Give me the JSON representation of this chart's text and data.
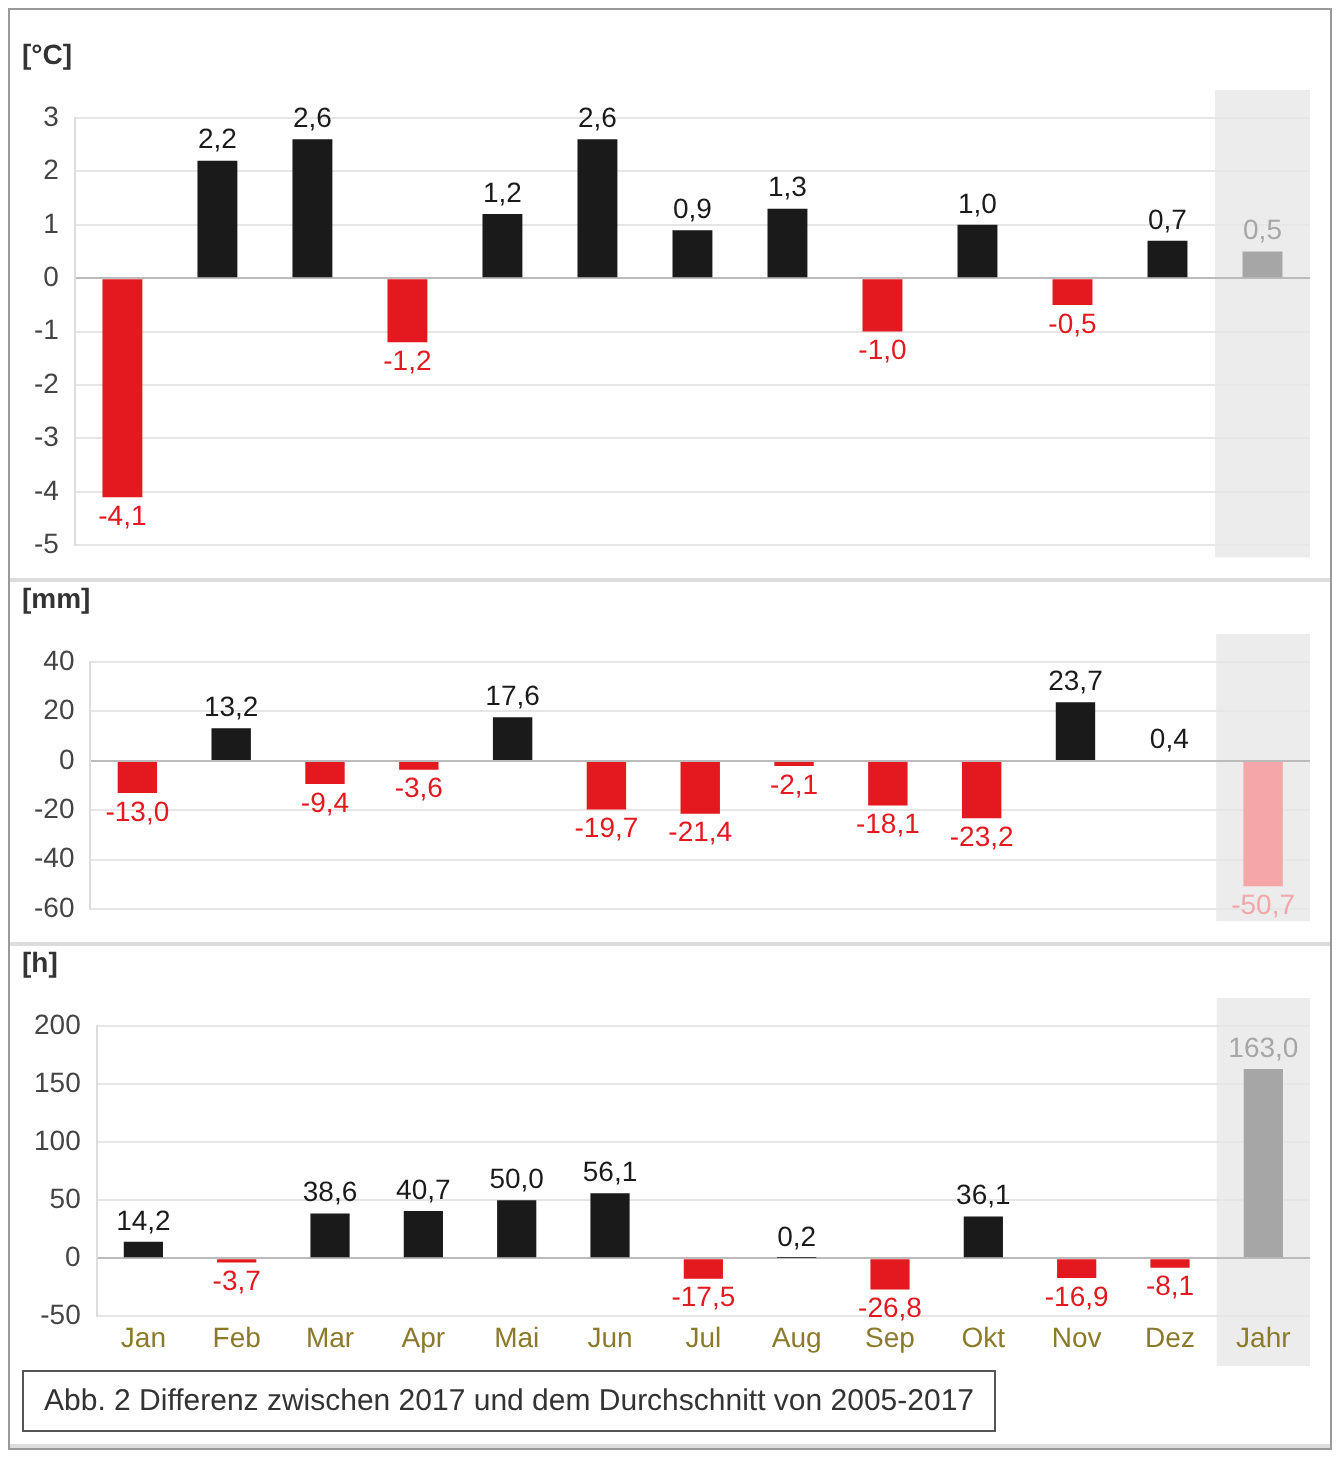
{
  "chart_data": [
    {
      "type": "bar",
      "ylabel": "[°C]",
      "categories": [
        "Jan",
        "Feb",
        "Mar",
        "Apr",
        "Mai",
        "Jun",
        "Jul",
        "Aug",
        "Sep",
        "Okt",
        "Nov",
        "Dez",
        "Jahr"
      ],
      "values": [
        -4.1,
        2.2,
        2.6,
        -1.2,
        1.2,
        2.6,
        0.9,
        1.3,
        -1.0,
        1.0,
        -0.5,
        0.7,
        0.5
      ],
      "value_labels": [
        "-4,1",
        "2,2",
        "2,6",
        "-1,2",
        "1,2",
        "2,6",
        "0,9",
        "1,3",
        "-1,0",
        "1,0",
        "-0,5",
        "0,7",
        "0,5"
      ],
      "colors": [
        "#e3191f",
        "#1a1a1a",
        "#1a1a1a",
        "#e3191f",
        "#1a1a1a",
        "#1a1a1a",
        "#1a1a1a",
        "#1a1a1a",
        "#e3191f",
        "#1a1a1a",
        "#e3191f",
        "#1a1a1a",
        "#a6a6a6"
      ],
      "ylim": [
        -5,
        3
      ],
      "yticks": [
        -5,
        -4,
        -3,
        -2,
        -1,
        0,
        1,
        2,
        3
      ],
      "grid": "y",
      "tick_labels": "y",
      "bands": [
        {
          "axis": "x",
          "from": "Jahr",
          "to": "Jahr",
          "color": "#ececec"
        }
      ]
    },
    {
      "type": "bar",
      "ylabel": "[mm]",
      "categories": [
        "Jan",
        "Feb",
        "Mar",
        "Apr",
        "Mai",
        "Jun",
        "Jul",
        "Aug",
        "Sep",
        "Okt",
        "Nov",
        "Dez",
        "Jahr"
      ],
      "values": [
        -13.0,
        13.2,
        -9.4,
        -3.6,
        17.6,
        -19.7,
        -21.4,
        -2.1,
        -18.1,
        -23.2,
        23.7,
        0.4,
        -50.7
      ],
      "value_labels": [
        "-13,0",
        "13,2",
        "-9,4",
        "-3,6",
        "17,6",
        "-19,7",
        "-21,4",
        "-2,1",
        "-18,1",
        "-23,2",
        "23,7",
        "0,4",
        "-50,7"
      ],
      "colors": [
        "#e3191f",
        "#1a1a1a",
        "#e3191f",
        "#e3191f",
        "#1a1a1a",
        "#e3191f",
        "#e3191f",
        "#e3191f",
        "#e3191f",
        "#e3191f",
        "#1a1a1a",
        "#1a1a1a",
        "#f4a6a8"
      ],
      "ylim": [
        -60,
        40
      ],
      "yticks": [
        -60,
        -40,
        -20,
        0,
        20,
        40
      ],
      "grid": "y",
      "tick_labels": "y",
      "bands": [
        {
          "axis": "x",
          "from": "Jahr",
          "to": "Jahr",
          "color": "#ececec"
        }
      ]
    },
    {
      "type": "bar",
      "ylabel": "[h]",
      "categories": [
        "Jan",
        "Feb",
        "Mar",
        "Apr",
        "Mai",
        "Jun",
        "Jul",
        "Aug",
        "Sep",
        "Okt",
        "Nov",
        "Dez",
        "Jahr"
      ],
      "values": [
        14.2,
        -3.7,
        38.6,
        40.7,
        50.0,
        56.1,
        -17.5,
        0.2,
        -26.8,
        36.1,
        -16.9,
        -8.1,
        163.0
      ],
      "value_labels": [
        "14,2",
        "-3,7",
        "38,6",
        "40,7",
        "50,0",
        "56,1",
        "-17,5",
        "0,2",
        "-26,8",
        "36,1",
        "-16,9",
        "-8,1",
        "163,0"
      ],
      "colors": [
        "#1a1a1a",
        "#e3191f",
        "#1a1a1a",
        "#1a1a1a",
        "#1a1a1a",
        "#1a1a1a",
        "#e3191f",
        "#1a1a1a",
        "#e3191f",
        "#1a1a1a",
        "#e3191f",
        "#e3191f",
        "#a6a6a6"
      ],
      "ylim": [
        -50,
        200
      ],
      "yticks": [
        -50,
        0,
        50,
        100,
        150,
        200
      ],
      "grid": "y",
      "bands": [
        {
          "axis": "x",
          "from": "Jahr",
          "to": "Jahr",
          "color": "#ececec"
        }
      ],
      "annotations": [
        "Abb. 2 Differenz zwischen  2017 und dem Durchschnitt  von 2005-2017"
      ]
    }
  ]
}
